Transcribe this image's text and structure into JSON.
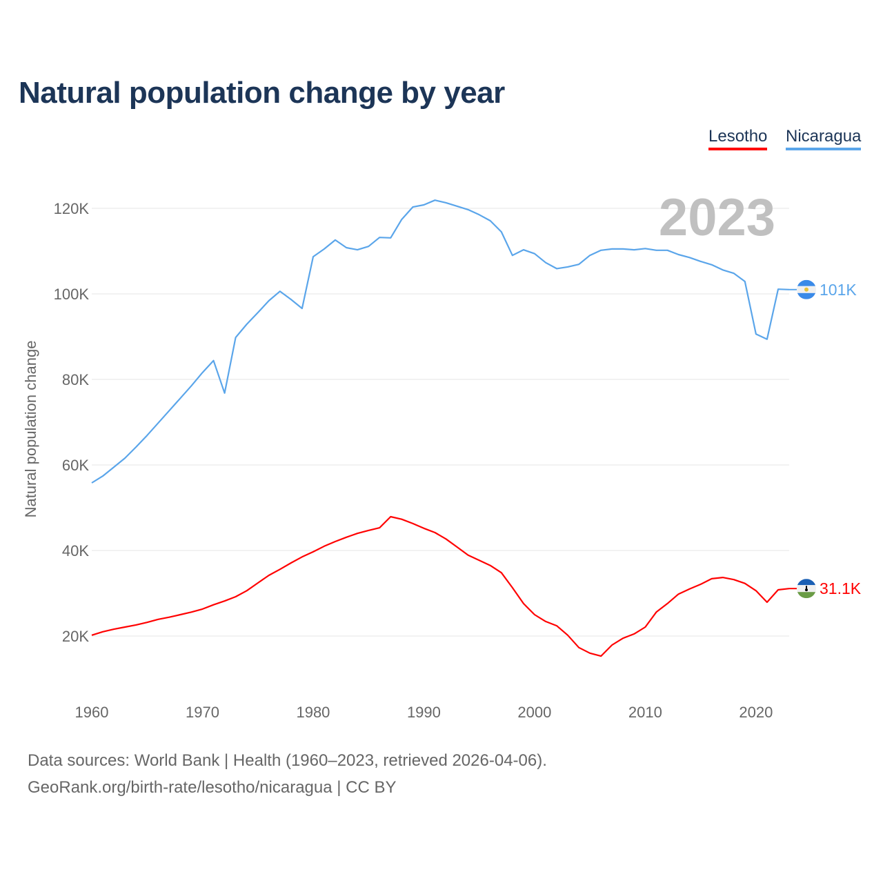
{
  "title": "Natural population change by year",
  "footer": {
    "line1": "Data sources: World Bank | Health (1960–2023, retrieved 2026-04-06).",
    "line2": "GeoRank.org/birth-rate/lesotho/nicaragua | CC BY"
  },
  "chart_data": {
    "type": "line",
    "title": "Natural population change by year",
    "xlabel": "",
    "ylabel": "Natural population change",
    "current_year_label": "2023",
    "xlim": [
      1960,
      2023
    ],
    "ylim": [
      0,
      125
    ],
    "x_ticks": [
      "1960",
      "1970",
      "1980",
      "1990",
      "2000",
      "2010",
      "2020"
    ],
    "y_ticks": [
      {
        "v": 20,
        "label": "20K"
      },
      {
        "v": 40,
        "label": "40K"
      },
      {
        "v": 60,
        "label": "60K"
      },
      {
        "v": 80,
        "label": "80K"
      },
      {
        "v": 100,
        "label": "100K"
      },
      {
        "v": 120,
        "label": "120K"
      }
    ],
    "grid": true,
    "legend_position": "top-right",
    "units": "thousands",
    "series": [
      {
        "name": "Lesotho",
        "color": "#ff0000",
        "end_label": "31.1K",
        "flag": "lesotho-flag",
        "values": [
          20.2,
          21.0,
          21.6,
          22.1,
          22.6,
          23.2,
          23.9,
          24.4,
          25.0,
          25.6,
          26.3,
          27.3,
          28.2,
          29.2,
          30.6,
          32.4,
          34.2,
          35.6,
          37.1,
          38.5,
          39.7,
          41.0,
          42.1,
          43.1,
          44.0,
          44.7,
          45.3,
          47.9,
          47.3,
          46.3,
          45.2,
          44.2,
          42.7,
          40.8,
          38.9,
          37.7,
          36.5,
          34.8,
          31.3,
          27.6,
          25.0,
          23.4,
          22.4,
          20.2,
          17.3,
          16.0,
          15.3,
          17.9,
          19.5,
          20.5,
          22.1,
          25.6,
          27.6,
          29.8,
          31.0,
          32.1,
          33.4,
          33.7,
          33.2,
          32.3,
          30.6,
          27.9,
          30.8,
          31.1
        ]
      },
      {
        "name": "Nicaragua",
        "color": "#5aa5ea",
        "end_label": "101K",
        "flag": "nicaragua-flag",
        "values": [
          55.8,
          57.4,
          59.5,
          61.6,
          64.2,
          66.9,
          69.8,
          72.7,
          75.6,
          78.5,
          81.6,
          84.4,
          76.8,
          89.8,
          92.9,
          95.6,
          98.4,
          100.6,
          98.7,
          96.6,
          108.7,
          110.5,
          112.6,
          110.8,
          110.3,
          111.1,
          113.2,
          113.1,
          117.4,
          120.3,
          120.8,
          121.9,
          121.3,
          120.5,
          119.7,
          118.5,
          117.1,
          114.5,
          109.0,
          110.3,
          109.4,
          107.3,
          105.9,
          106.3,
          106.9,
          109.0,
          110.2,
          110.5,
          110.5,
          110.3,
          110.6,
          110.2,
          110.2,
          109.2,
          108.5,
          107.6,
          106.8,
          105.6,
          104.8,
          102.9,
          90.6,
          89.4,
          101.1,
          101.0
        ]
      }
    ]
  }
}
